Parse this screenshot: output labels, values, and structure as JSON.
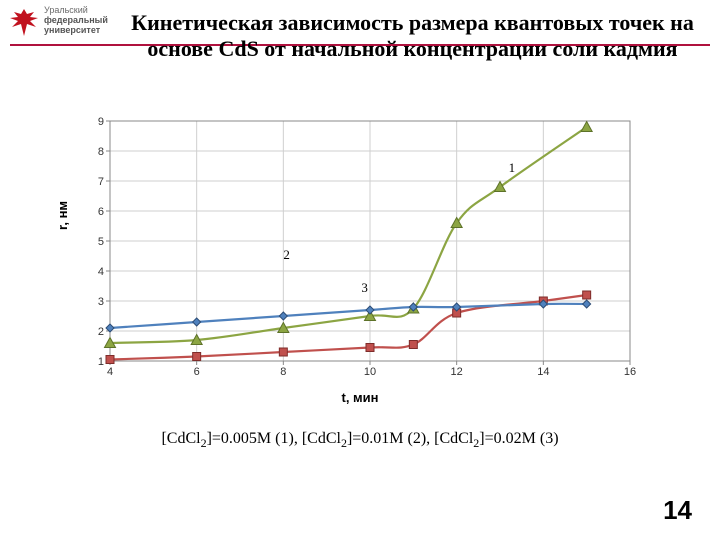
{
  "logo": {
    "line1": "Уральский",
    "line2": "федеральный",
    "line3": "университет",
    "text_color": "#6b6b6b",
    "icon_color": "#c1121f"
  },
  "rule_color": "#b0113e",
  "title": {
    "text": "Кинетическая зависимость размера квантовых точек на основе CdS от начальной концентрации соли кадмия",
    "fontsize": 22,
    "color": "#000000",
    "weight": "bold"
  },
  "chart": {
    "type": "line",
    "background_color": "#ffffff",
    "plot_border_color": "#888888",
    "grid_color": "#cfcfcf",
    "tick_color": "#888888",
    "tick_font": 11,
    "xlim": [
      4,
      16
    ],
    "ylim": [
      1,
      9
    ],
    "xticks": [
      4,
      6,
      8,
      10,
      12,
      14,
      16
    ],
    "yticks": [
      1,
      2,
      3,
      4,
      5,
      6,
      7,
      8,
      9
    ],
    "xlabel": "t, мин",
    "ylabel": "r, нм",
    "label_fontsize": 13,
    "series": [
      {
        "id": "s1",
        "data_label": "1",
        "data_label_x": 13.2,
        "data_label_y": 7.3,
        "x": [
          4,
          6,
          8,
          10,
          11,
          12,
          13,
          15
        ],
        "y": [
          1.6,
          1.7,
          2.1,
          2.5,
          2.75,
          5.6,
          6.8,
          8.8
        ],
        "line_color": "#8ca543",
        "line_width": 2.2,
        "marker": "triangle",
        "marker_fill": "#8ca543",
        "marker_stroke": "#5d7229",
        "marker_size": 9
      },
      {
        "id": "s2",
        "data_label": "2",
        "data_label_x": 8.0,
        "data_label_y": 4.4,
        "x": [
          4,
          6,
          8,
          10,
          11,
          12,
          14,
          15
        ],
        "y": [
          1.05,
          1.15,
          1.3,
          1.45,
          1.55,
          2.6,
          3.0,
          3.2
        ],
        "line_color": "#c0504d",
        "line_width": 2.2,
        "marker": "square",
        "marker_fill": "#c0504d",
        "marker_stroke": "#7e2c2a",
        "marker_size": 8
      },
      {
        "id": "s3",
        "data_label": "3",
        "data_label_x": 9.8,
        "data_label_y": 3.3,
        "x": [
          4,
          6,
          8,
          10,
          11,
          12,
          14,
          15
        ],
        "y": [
          2.1,
          2.3,
          2.5,
          2.7,
          2.8,
          2.8,
          2.9,
          2.9
        ],
        "line_color": "#4f81bd",
        "line_width": 2.2,
        "marker": "diamond",
        "marker_fill": "#4f81bd",
        "marker_stroke": "#2d4d76",
        "marker_size": 8
      }
    ]
  },
  "caption_parts": {
    "p1a": "[CdCl",
    "p1b": "]=0.005M (1), [CdCl",
    "p1c": "]=0.01M (2), [CdCl",
    "p1d": "]=0.02M (3)",
    "sub": "2"
  },
  "page_number": "14"
}
